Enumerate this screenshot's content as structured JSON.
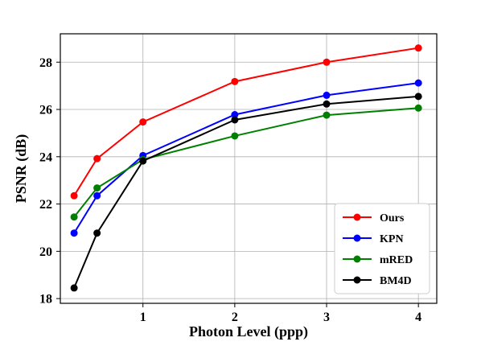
{
  "chart_data": {
    "type": "line",
    "title": "",
    "xlabel": "Photon Level (ppp)",
    "ylabel": "PSNR (dB)",
    "xlim": [
      0.1,
      4.2
    ],
    "ylim": [
      17.8,
      29.2
    ],
    "xticks": [
      1,
      2,
      3,
      4
    ],
    "yticks": [
      18,
      20,
      22,
      24,
      26,
      28
    ],
    "grid": true,
    "legend_position": "lower-right",
    "x": [
      0.25,
      0.5,
      1,
      2,
      3,
      4
    ],
    "series": [
      {
        "name": "Ours",
        "color": "#ff0000",
        "marker": "circle",
        "values": [
          22.35,
          23.92,
          25.47,
          27.18,
          28.0,
          28.6
        ]
      },
      {
        "name": "KPN",
        "color": "#0000ff",
        "marker": "circle",
        "values": [
          20.77,
          22.35,
          24.05,
          25.78,
          26.6,
          27.12
        ]
      },
      {
        "name": "mRED",
        "color": "#008000",
        "marker": "circle",
        "values": [
          21.45,
          22.68,
          23.88,
          24.88,
          25.76,
          26.06
        ]
      },
      {
        "name": "BM4D",
        "color": "#000000",
        "marker": "circle",
        "values": [
          18.45,
          20.77,
          23.82,
          25.56,
          26.23,
          26.55
        ]
      }
    ]
  }
}
